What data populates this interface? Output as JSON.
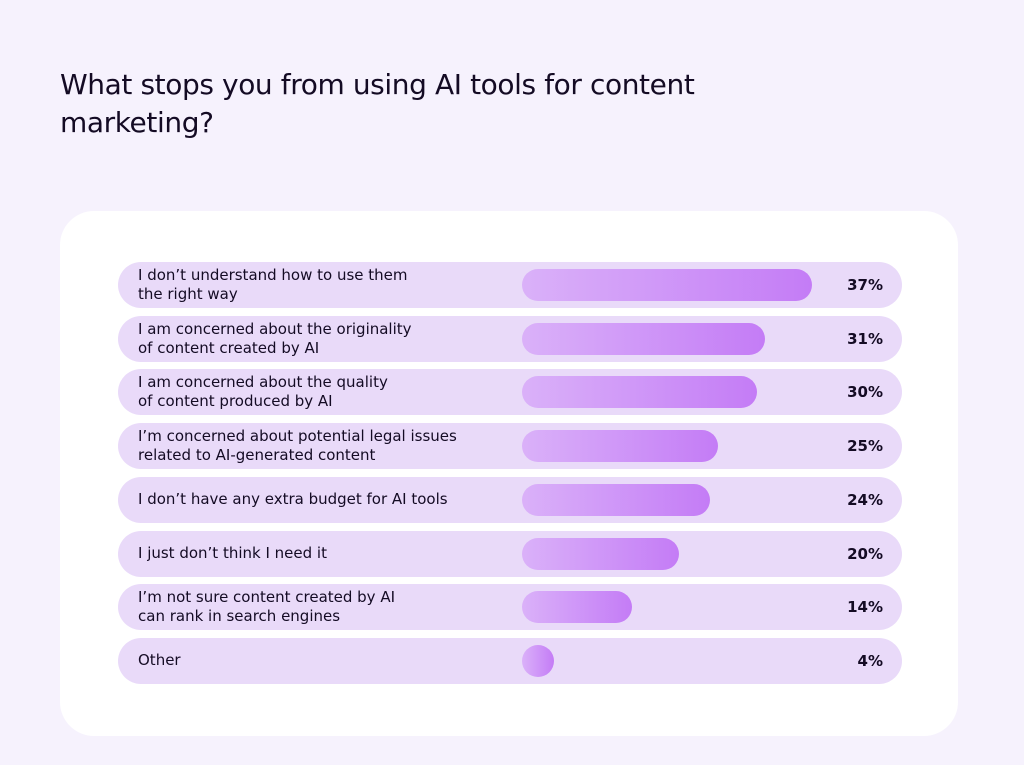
{
  "title": "What stops you from using AI tools for content marketing?",
  "chart_data": {
    "type": "bar",
    "orientation": "horizontal",
    "title": "What stops you from using AI tools for content marketing?",
    "xlabel": "",
    "ylabel": "",
    "xlim": [
      0,
      37
    ],
    "grid": false,
    "bar_color": "#c47cf6",
    "row_color": "#e9daf9",
    "categories": [
      "I don’t understand how to use them\nthe right way",
      "I am concerned about the originality\nof content created by AI",
      "I am concerned about the quality\nof content produced by AI",
      "I’m concerned about potential legal issues\nrelated to AI-generated content",
      "I don’t have any extra budget for AI tools",
      "I just don’t think I need it",
      "I’m not sure content created by AI\ncan rank in search engines",
      "Other"
    ],
    "values": [
      37,
      31,
      30,
      25,
      24,
      20,
      14,
      4
    ],
    "value_labels": [
      "37%",
      "31%",
      "30%",
      "25%",
      "24%",
      "20%",
      "14%",
      "4%"
    ]
  }
}
